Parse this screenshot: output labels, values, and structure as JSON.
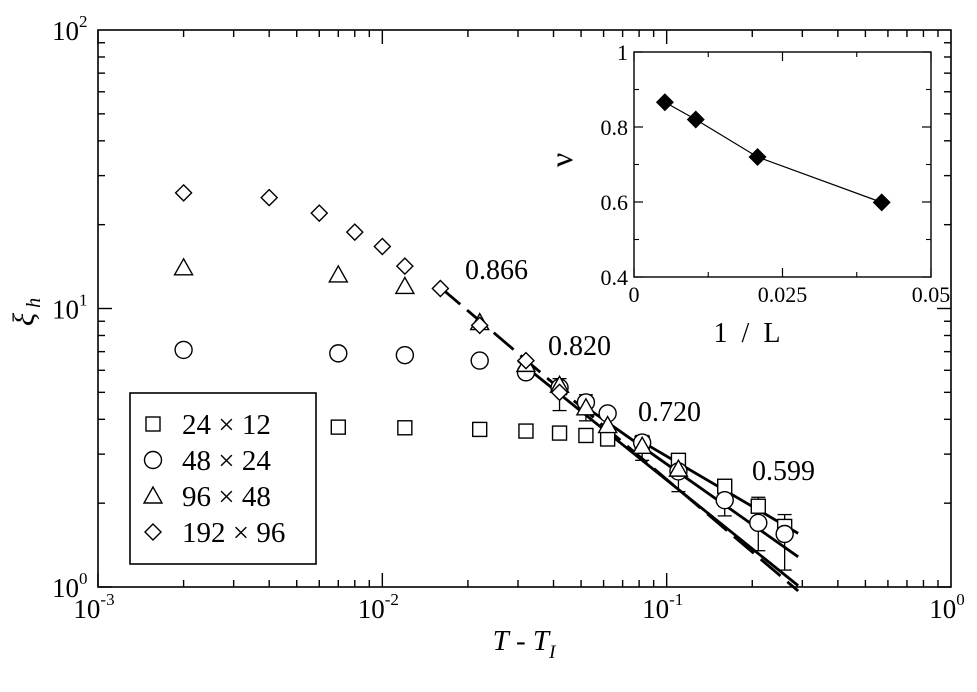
{
  "chart_data": [
    {
      "type": "scatter",
      "scale": {
        "x": "log",
        "y": "log"
      },
      "xlim": [
        0.001,
        1
      ],
      "ylim": [
        1,
        100
      ],
      "xlabel": {
        "main": "T",
        "sep": " - ",
        "sub_main": "T",
        "sub": "I"
      },
      "ylabel": {
        "main": "ξ",
        "sub": "h"
      },
      "x_ticks": [
        {
          "base": "10",
          "exp": "-3"
        },
        {
          "base": "10",
          "exp": "-2"
        },
        {
          "base": "10",
          "exp": "-1"
        },
        {
          "base": "10",
          "exp": "0"
        }
      ],
      "y_ticks": [
        {
          "base": "10",
          "exp": "0"
        },
        {
          "base": "10",
          "exp": "1"
        },
        {
          "base": "10",
          "exp": "2"
        }
      ],
      "legend_position": "bottom-left",
      "series": [
        {
          "name": "24 × 12",
          "marker": "square",
          "x": [
            0.007,
            0.012,
            0.022,
            0.032,
            0.042,
            0.052,
            0.062,
            0.082,
            0.11,
            0.16,
            0.21,
            0.26
          ],
          "y": [
            3.75,
            3.73,
            3.68,
            3.63,
            3.57,
            3.5,
            3.4,
            3.28,
            2.85,
            2.3,
            1.95,
            1.65
          ]
        },
        {
          "name": "48 × 24",
          "marker": "circle",
          "x": [
            0.002,
            0.007,
            0.012,
            0.022,
            0.032,
            0.042,
            0.052,
            0.062,
            0.082,
            0.11,
            0.16,
            0.21,
            0.26
          ],
          "y": [
            7.1,
            6.9,
            6.8,
            6.5,
            5.9,
            5.2,
            4.6,
            4.2,
            3.3,
            2.6,
            2.05,
            1.7,
            1.55
          ]
        },
        {
          "name": "96 × 48",
          "marker": "triangle",
          "x": [
            0.002,
            0.007,
            0.012,
            0.022,
            0.032,
            0.042,
            0.052,
            0.062,
            0.082,
            0.11
          ],
          "y": [
            14.0,
            13.2,
            12.0,
            8.9,
            6.3,
            5.3,
            4.4,
            3.8,
            3.2,
            2.65
          ]
        },
        {
          "name": "192 × 96",
          "marker": "diamond",
          "x": [
            0.002,
            0.004,
            0.006,
            0.008,
            0.01,
            0.012,
            0.016,
            0.022,
            0.032,
            0.042
          ],
          "y": [
            26.0,
            25.0,
            22.0,
            18.8,
            16.7,
            14.2,
            11.8,
            8.7,
            6.5,
            5.0
          ]
        }
      ],
      "error_bars": [
        {
          "x": 0.042,
          "lo": 4.3,
          "hi": 5.6
        },
        {
          "x": 0.052,
          "lo": 3.95,
          "hi": 4.9
        },
        {
          "x": 0.082,
          "lo": 2.85,
          "hi": 3.5
        },
        {
          "x": 0.11,
          "lo": 2.2,
          "hi": 3.0
        },
        {
          "x": 0.16,
          "lo": 1.8,
          "hi": 2.35
        },
        {
          "x": 0.21,
          "lo": 1.35,
          "hi": 2.1
        },
        {
          "x": 0.26,
          "lo": 1.15,
          "hi": 1.82
        }
      ],
      "fit_lines": [
        {
          "x0": 0.016,
          "x1": 0.29,
          "y0": 11.9,
          "slope": -0.866,
          "dash": true
        },
        {
          "x0": 0.03,
          "x1": 0.29,
          "y0": 6.5,
          "slope": -0.82,
          "dash": false
        },
        {
          "x0": 0.05,
          "x1": 0.29,
          "y0": 4.55,
          "slope": -0.72,
          "dash": false
        },
        {
          "x0": 0.08,
          "x1": 0.29,
          "y0": 3.37,
          "slope": -0.599,
          "dash": false
        }
      ],
      "annotations": [
        "0.866",
        "0.820",
        "0.720",
        "0.599"
      ]
    },
    {
      "type": "line",
      "xlabel": "1  /  L",
      "ylabel": "ν",
      "xlim": [
        0,
        0.05
      ],
      "ylim": [
        0.4,
        1.0
      ],
      "x_ticks": [
        "0",
        "0.025",
        "0.05"
      ],
      "y_ticks": [
        "0.4",
        "0.6",
        "0.8",
        "1"
      ],
      "series": [
        {
          "marker": "filled-diamond",
          "x": [
            0.0052,
            0.0104,
            0.0208,
            0.0417
          ],
          "y": [
            0.866,
            0.82,
            0.72,
            0.599
          ]
        }
      ]
    }
  ]
}
